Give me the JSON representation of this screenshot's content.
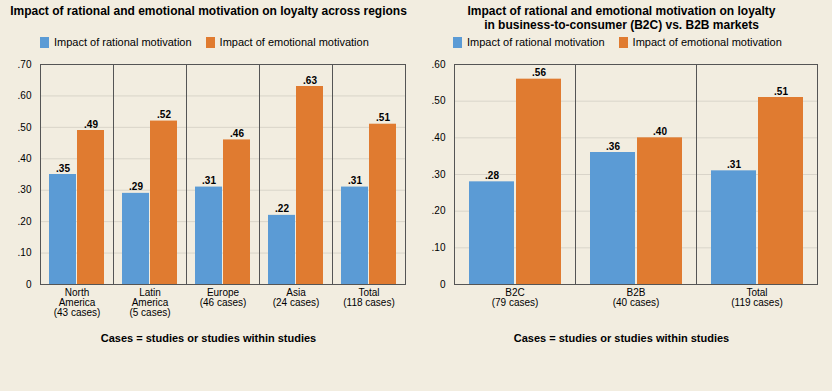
{
  "chart_data": [
    {
      "type": "bar",
      "title": "Impact of rational and emotional motivation on loyalty across regions",
      "categories": [
        "North\nAmerica\n(43 cases)",
        "Latin\nAmerica\n(5 cases)",
        "Europe\n(46 cases)",
        "Asia\n(24 cases)",
        "Total\n(118 cases)"
      ],
      "series": [
        {
          "name": "Impact of rational motivation",
          "color": "#5B9BD5",
          "values": [
            0.35,
            0.29,
            0.31,
            0.22,
            0.31
          ],
          "value_labels": [
            ".35",
            ".29",
            ".31",
            ".22",
            ".31"
          ]
        },
        {
          "name": "Impact of emotional motivation",
          "color": "#E07B30",
          "values": [
            0.49,
            0.52,
            0.46,
            0.63,
            0.51
          ],
          "value_labels": [
            ".49",
            ".52",
            ".46",
            ".63",
            ".51"
          ]
        }
      ],
      "ylim": [
        0,
        0.7
      ],
      "yticks": [
        0,
        {
          "value": 0.1,
          "label": ".10"
        },
        {
          "value": 0.2,
          "label": ".20"
        },
        {
          "value": 0.3,
          "label": ".30"
        },
        {
          "value": 0.4,
          "label": ".40"
        },
        {
          "value": 0.5,
          "label": ".50"
        },
        {
          "value": 0.6,
          "label": ".60"
        },
        {
          "value": 0.7,
          "label": ".70"
        }
      ],
      "grid": true,
      "data_labels": true,
      "caption": "Cases = studies or studies within studies"
    },
    {
      "type": "bar",
      "title": "Impact of rational and emotional motivation on loyalty\nin business-to-consumer (B2C) vs. B2B markets",
      "categories": [
        "B2C\n(79 cases)",
        "B2B\n(40 cases)",
        "Total\n(119 cases)"
      ],
      "series": [
        {
          "name": "Impact of rational motivation",
          "color": "#5B9BD5",
          "values": [
            0.28,
            0.36,
            0.31
          ],
          "value_labels": [
            ".28",
            ".36",
            ".31"
          ]
        },
        {
          "name": "Impact of emotional motivation",
          "color": "#E07B30",
          "values": [
            0.56,
            0.4,
            0.51
          ],
          "value_labels": [
            ".56",
            ".40",
            ".51"
          ]
        }
      ],
      "ylim": [
        0,
        0.6
      ],
      "yticks": [
        0,
        {
          "value": 0.1,
          "label": ".10"
        },
        {
          "value": 0.2,
          "label": ".20"
        },
        {
          "value": 0.3,
          "label": ".30"
        },
        {
          "value": 0.4,
          "label": ".40"
        },
        {
          "value": 0.5,
          "label": ".50"
        },
        {
          "value": 0.6,
          "label": ".60"
        }
      ],
      "grid": true,
      "data_labels": true,
      "caption": "Cases = studies or studies within studies"
    }
  ]
}
